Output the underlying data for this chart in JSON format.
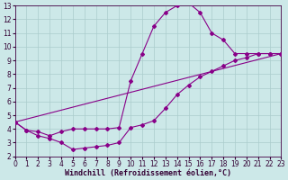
{
  "background_color": "#cce8e8",
  "grid_color": "#aacccc",
  "line_color": "#880088",
  "xlim": [
    0,
    23
  ],
  "ylim": [
    2,
    13
  ],
  "xticks": [
    0,
    1,
    2,
    3,
    4,
    5,
    6,
    7,
    8,
    9,
    10,
    11,
    12,
    13,
    14,
    15,
    16,
    17,
    18,
    19,
    20,
    21,
    22,
    23
  ],
  "yticks": [
    2,
    3,
    4,
    5,
    6,
    7,
    8,
    9,
    10,
    11,
    12,
    13
  ],
  "tick_fontsize": 5.5,
  "xlabel": "Windchill (Refroidissement éolien,°C)",
  "xlabel_fontsize": 6.0,
  "curves": [
    {
      "x": [
        0,
        1,
        2,
        3,
        4,
        5,
        6,
        7,
        8,
        9,
        10,
        11,
        12,
        13,
        14,
        15,
        16,
        17,
        18,
        19,
        20,
        21,
        22,
        23
      ],
      "y": [
        4.5,
        3.9,
        3.8,
        3.5,
        3.8,
        4.0,
        4.0,
        4.0,
        4.0,
        4.1,
        7.5,
        9.5,
        11.5,
        12.5,
        13.0,
        13.2,
        12.5,
        11.0,
        10.5,
        9.5,
        9.5,
        9.5,
        9.5,
        9.5
      ],
      "has_markers": true
    },
    {
      "x": [
        0,
        1,
        2,
        3,
        4,
        5,
        6,
        7,
        8,
        9,
        10,
        11,
        12,
        13,
        14,
        15,
        16,
        17,
        18,
        19,
        20,
        21,
        22,
        23
      ],
      "y": [
        4.5,
        3.9,
        3.5,
        3.3,
        3.0,
        2.5,
        2.6,
        2.7,
        2.8,
        3.0,
        4.1,
        4.3,
        4.6,
        5.5,
        6.5,
        7.2,
        7.8,
        8.2,
        8.6,
        9.0,
        9.2,
        9.5,
        9.5,
        9.5
      ],
      "has_markers": true
    },
    {
      "x": [
        0,
        23
      ],
      "y": [
        4.5,
        9.5
      ],
      "has_markers": false
    }
  ]
}
